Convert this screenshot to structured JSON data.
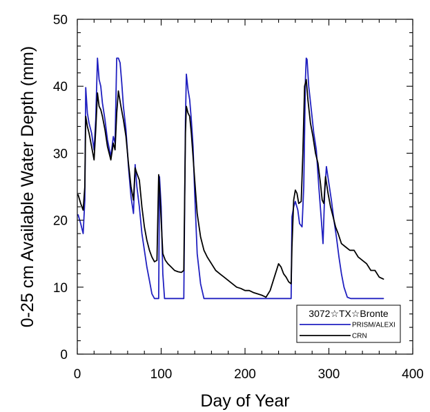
{
  "chart_data": {
    "type": "line",
    "title": "",
    "xlabel": "Day of Year",
    "ylabel": "0-25 cm Available Water Depth (mm)",
    "xlim": [
      0,
      400
    ],
    "ylim": [
      0,
      50
    ],
    "xticks": [
      0,
      100,
      200,
      300,
      400
    ],
    "yticks": [
      0,
      10,
      20,
      30,
      40,
      50
    ],
    "legend": {
      "title": "3072☆TX☆Bronte",
      "placement": "bottom-right"
    },
    "series": [
      {
        "name": "PRISM/ALEXI",
        "color": "#2020c0",
        "x": [
          1,
          4,
          7,
          9,
          10,
          12,
          14,
          17,
          20,
          22,
          24,
          26,
          28,
          30,
          33,
          36,
          40,
          43,
          45,
          47,
          49,
          51,
          53,
          55,
          58,
          61,
          64,
          67,
          69,
          71,
          74,
          77,
          80,
          83,
          86,
          89,
          92,
          95,
          97,
          98,
          100,
          102,
          104,
          108,
          112,
          116,
          120,
          125,
          127,
          129,
          130,
          132,
          134,
          136,
          138,
          140,
          143,
          147,
          151,
          155,
          160,
          180,
          200,
          220,
          240,
          255,
          256,
          258,
          260,
          263,
          265,
          268,
          270,
          272,
          273,
          274,
          276,
          279,
          282,
          285,
          288,
          291,
          293,
          295,
          297,
          300,
          303,
          306,
          309,
          312,
          315,
          318,
          322,
          326,
          330,
          340,
          350,
          365
        ],
        "values": [
          20.8,
          19.5,
          18.0,
          23.0,
          39.8,
          36.0,
          34.5,
          33.0,
          30.5,
          35.0,
          44.2,
          41.0,
          40.0,
          37.5,
          35.0,
          32.0,
          29.5,
          32.5,
          31.5,
          44.2,
          44.2,
          43.5,
          40.5,
          37.0,
          33.5,
          28.0,
          23.5,
          21.0,
          28.3,
          25.0,
          22.0,
          18.0,
          15.5,
          13.0,
          11.0,
          9.0,
          8.3,
          8.3,
          8.3,
          26.5,
          22.0,
          12.0,
          8.3,
          8.3,
          8.3,
          8.3,
          8.3,
          8.3,
          8.3,
          35.0,
          41.8,
          39.5,
          38.0,
          35.0,
          31.0,
          24.0,
          15.0,
          10.5,
          8.3,
          8.3,
          8.3,
          8.3,
          8.3,
          8.3,
          8.3,
          8.3,
          20.5,
          22.0,
          22.8,
          21.5,
          19.5,
          19.0,
          25.0,
          41.0,
          44.2,
          44.0,
          40.0,
          36.5,
          33.0,
          30.5,
          25.0,
          20.0,
          16.5,
          24.0,
          28.0,
          25.5,
          23.0,
          20.0,
          17.5,
          14.5,
          12.0,
          10.0,
          8.5,
          8.3,
          8.3,
          8.3,
          8.3,
          8.3
        ]
      },
      {
        "name": "CRN",
        "color": "#000000",
        "x": [
          1,
          4,
          7,
          9,
          10,
          12,
          14,
          17,
          20,
          22,
          24,
          26,
          28,
          30,
          33,
          36,
          40,
          43,
          45,
          47,
          49,
          52,
          55,
          58,
          61,
          64,
          67,
          69,
          71,
          74,
          77,
          80,
          83,
          86,
          89,
          92,
          95,
          97,
          98,
          100,
          102,
          105,
          108,
          112,
          116,
          120,
          124,
          127,
          129,
          130,
          132,
          134,
          136,
          138,
          140,
          143,
          147,
          151,
          155,
          160,
          165,
          170,
          175,
          180,
          185,
          190,
          195,
          200,
          205,
          210,
          215,
          220,
          225,
          230,
          235,
          240,
          243,
          246,
          249,
          252,
          255,
          256,
          258,
          260,
          262,
          264,
          267,
          269,
          271,
          273,
          275,
          278,
          281,
          284,
          287,
          290,
          292,
          294,
          296,
          299,
          302,
          305,
          308,
          311,
          315,
          320,
          325,
          330,
          335,
          340,
          345,
          350,
          355,
          360,
          365
        ],
        "values": [
          23.8,
          22.5,
          21.5,
          25.0,
          35.5,
          34.0,
          33.0,
          31.0,
          29.0,
          33.5,
          39.0,
          37.0,
          36.5,
          35.5,
          33.5,
          31.0,
          29.0,
          31.5,
          30.5,
          36.0,
          39.3,
          37.0,
          35.0,
          32.5,
          28.5,
          25.0,
          23.0,
          27.8,
          27.0,
          26.0,
          22.0,
          19.0,
          17.0,
          15.5,
          14.5,
          13.8,
          14.0,
          26.8,
          25.0,
          20.0,
          15.0,
          14.0,
          13.5,
          13.0,
          12.5,
          12.3,
          12.2,
          12.5,
          33.0,
          37.0,
          36.0,
          35.5,
          33.0,
          29.5,
          26.0,
          21.0,
          17.5,
          15.5,
          14.5,
          13.5,
          12.5,
          12.0,
          11.5,
          11.0,
          10.5,
          10.0,
          9.8,
          9.5,
          9.5,
          9.2,
          9.0,
          8.8,
          8.5,
          9.5,
          11.5,
          13.5,
          13.0,
          12.0,
          11.5,
          10.8,
          10.5,
          16.0,
          23.0,
          24.5,
          24.0,
          22.5,
          22.8,
          30.0,
          40.0,
          41.0,
          38.0,
          34.5,
          32.5,
          30.0,
          28.5,
          25.5,
          23.0,
          22.5,
          26.5,
          24.0,
          22.0,
          20.5,
          19.0,
          18.0,
          16.5,
          16.0,
          15.5,
          15.5,
          14.5,
          14.0,
          13.5,
          12.5,
          12.5,
          11.5,
          11.2
        ]
      }
    ]
  }
}
